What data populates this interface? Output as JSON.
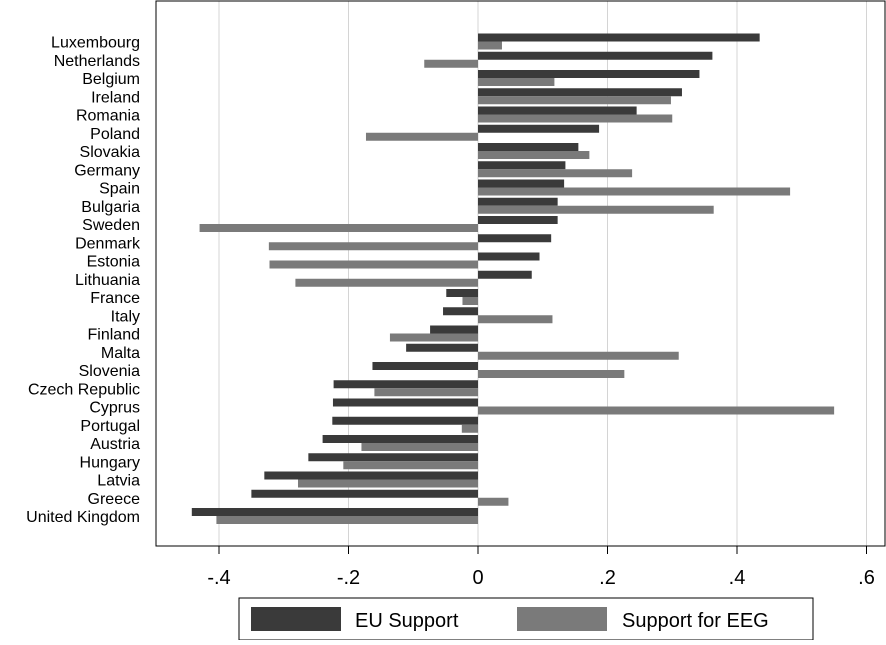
{
  "chart_data": {
    "type": "bar",
    "orientation": "horizontal",
    "categories": [
      "Luxembourg",
      "Netherlands",
      "Belgium",
      "Ireland",
      "Romania",
      "Poland",
      "Slovakia",
      "Germany",
      "Spain",
      "Bulgaria",
      "Sweden",
      "Denmark",
      "Estonia",
      "Lithuania",
      "France",
      "Italy",
      "Finland",
      "Malta",
      "Slovenia",
      "Czech Republic",
      "Cyprus",
      "Portugal",
      "Austria",
      "Hungary",
      "Latvia",
      "Greece",
      "United Kingdom"
    ],
    "series": [
      {
        "name": "EU Support",
        "color": "#3a3a3a",
        "values": [
          0.435,
          0.362,
          0.342,
          0.315,
          0.245,
          0.187,
          0.155,
          0.135,
          0.133,
          0.123,
          0.123,
          0.113,
          0.095,
          0.083,
          -0.049,
          -0.054,
          -0.074,
          -0.111,
          -0.163,
          -0.223,
          -0.224,
          -0.225,
          -0.24,
          -0.262,
          -0.33,
          -0.35,
          -0.442
        ]
      },
      {
        "name": "Support for EEG",
        "color": "#7a7a7a",
        "values": [
          0.037,
          -0.083,
          0.118,
          0.298,
          0.3,
          -0.173,
          0.172,
          0.238,
          0.482,
          0.364,
          -0.43,
          -0.323,
          -0.322,
          -0.282,
          -0.024,
          0.115,
          -0.136,
          0.31,
          0.226,
          -0.16,
          0.55,
          -0.025,
          -0.18,
          -0.208,
          -0.278,
          0.047,
          -0.404
        ]
      }
    ],
    "xlim": [
      -0.475,
      0.6
    ],
    "xticks": [
      -0.4,
      -0.2,
      0,
      0.2,
      0.4,
      0.6
    ],
    "xtick_labels": [
      "-.4",
      "-.2",
      "0",
      ".2",
      ".4",
      ".6"
    ],
    "grid": "vertical",
    "legend_position": "bottom"
  }
}
